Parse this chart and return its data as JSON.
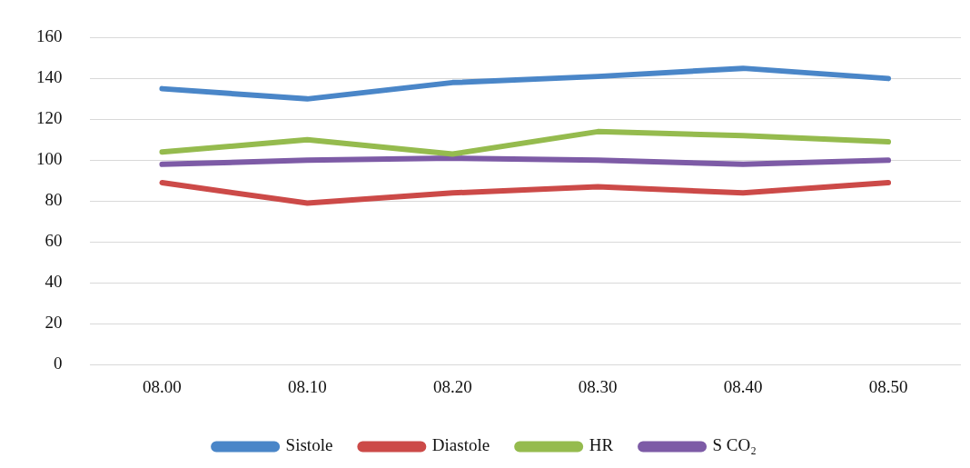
{
  "chart_data": {
    "type": "line",
    "categories": [
      "08.00",
      "08.10",
      "08.20",
      "08.30",
      "08.40",
      "08.50"
    ],
    "series": [
      {
        "name": "Sistole",
        "color": "#4a86c8",
        "values": [
          135,
          130,
          138,
          141,
          145,
          140
        ]
      },
      {
        "name": "Diastole",
        "color": "#cc4a48",
        "values": [
          89,
          79,
          84,
          87,
          84,
          89
        ]
      },
      {
        "name": "HR",
        "color": "#95bb4e",
        "values": [
          104,
          110,
          103,
          114,
          112,
          109
        ]
      },
      {
        "name": "S CO₂",
        "color": "#7d5ba6",
        "values": [
          98,
          100,
          101,
          100,
          98,
          100
        ]
      }
    ],
    "ylim": [
      0,
      160
    ],
    "yticks": [
      0,
      20,
      40,
      60,
      80,
      100,
      120,
      140,
      160
    ],
    "grid": "y",
    "legend": "bottom",
    "marker": "none",
    "line_style": "solid"
  }
}
